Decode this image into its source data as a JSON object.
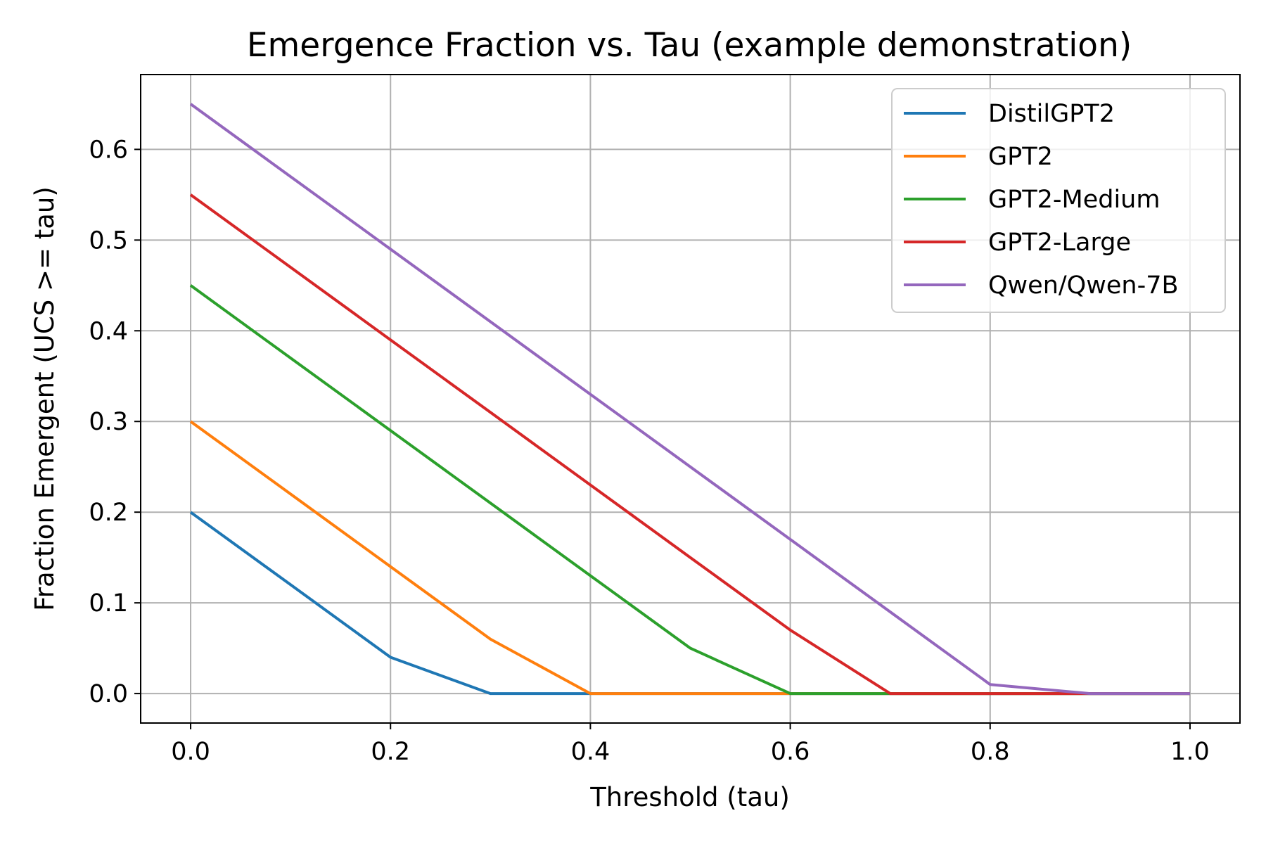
{
  "chart_data": {
    "type": "line",
    "title": "Emergence Fraction vs. Tau (example demonstration)",
    "xlabel": "Threshold (tau)",
    "ylabel": "Fraction Emergent (UCS >= tau)",
    "x": [
      0.0,
      0.1,
      0.2,
      0.3,
      0.4,
      0.5,
      0.6,
      0.7,
      0.8,
      0.9,
      1.0
    ],
    "xlim": [
      -0.05,
      1.05
    ],
    "ylim": [
      -0.0325,
      0.6825
    ],
    "xticks": [
      "0.0",
      "0.2",
      "0.4",
      "0.6",
      "0.8",
      "1.0"
    ],
    "yticks": [
      "0.0",
      "0.1",
      "0.2",
      "0.3",
      "0.4",
      "0.5",
      "0.6"
    ],
    "grid": true,
    "legend_position": "top-right",
    "series": [
      {
        "name": "DistilGPT2",
        "color": "#1f77b4",
        "values": [
          0.2,
          0.12,
          0.04,
          0.0,
          0.0,
          0.0,
          0.0,
          0.0,
          0.0,
          0.0,
          0.0
        ]
      },
      {
        "name": "GPT2",
        "color": "#ff7f0e",
        "values": [
          0.3,
          0.22,
          0.14,
          0.06,
          0.0,
          0.0,
          0.0,
          0.0,
          0.0,
          0.0,
          0.0
        ]
      },
      {
        "name": "GPT2-Medium",
        "color": "#2ca02c",
        "values": [
          0.45,
          0.37,
          0.29,
          0.21,
          0.13,
          0.05,
          0.0,
          0.0,
          0.0,
          0.0,
          0.0
        ]
      },
      {
        "name": "GPT2-Large",
        "color": "#d62728",
        "values": [
          0.55,
          0.47,
          0.39,
          0.31,
          0.23,
          0.15,
          0.07,
          0.0,
          0.0,
          0.0,
          0.0
        ]
      },
      {
        "name": "Qwen/Qwen-7B",
        "color": "#9467bd",
        "values": [
          0.65,
          0.57,
          0.49,
          0.41,
          0.33,
          0.25,
          0.17,
          0.09,
          0.01,
          0.0,
          0.0
        ]
      }
    ]
  }
}
